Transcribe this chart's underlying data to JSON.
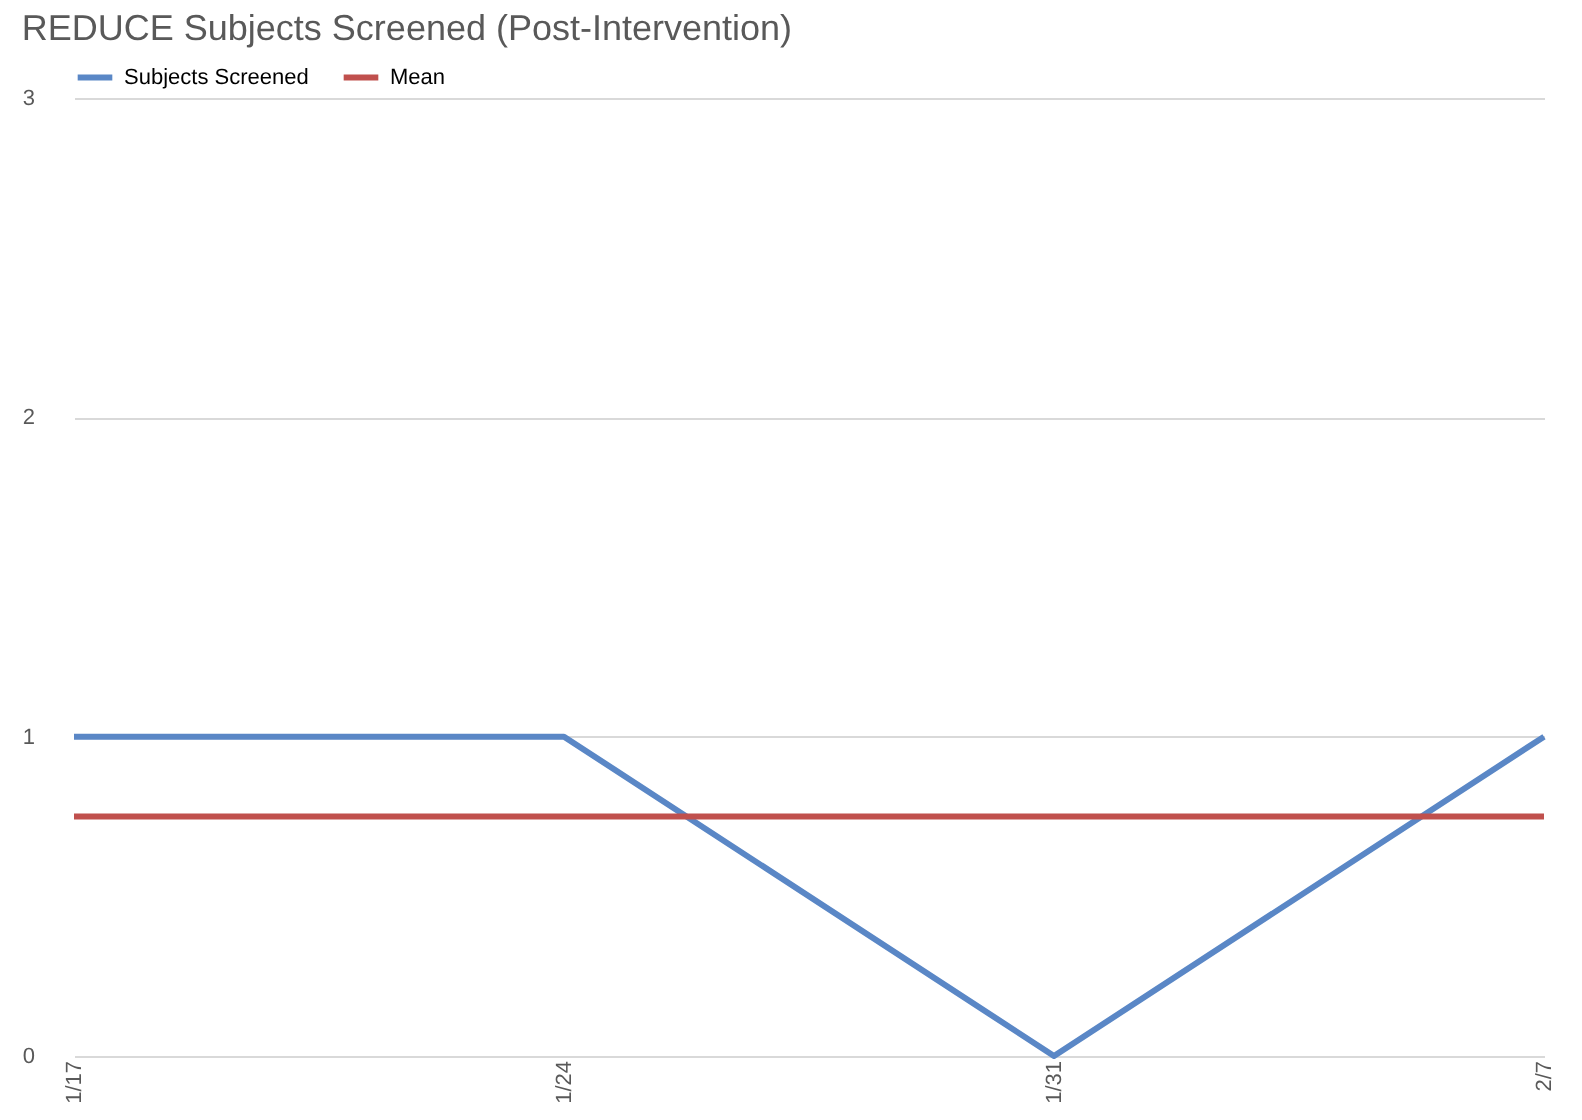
{
  "chart_data": {
    "type": "line",
    "title": "REDUCE Subjects Screened (Post-Intervention)",
    "categories": [
      "1/17",
      "1/24",
      "1/31",
      "2/7"
    ],
    "series": [
      {
        "name": "Subjects Screened",
        "color": "#5a87c6",
        "values": [
          1,
          1,
          0,
          1
        ]
      },
      {
        "name": "Mean",
        "color": "#c0504d",
        "values": [
          0.75,
          0.75,
          0.75,
          0.75
        ]
      }
    ],
    "ylim": [
      0,
      3
    ],
    "yticks": [
      0,
      1,
      2,
      3
    ],
    "grid": "y",
    "legend": "top left",
    "marker": "none",
    "line_style": "solid"
  }
}
